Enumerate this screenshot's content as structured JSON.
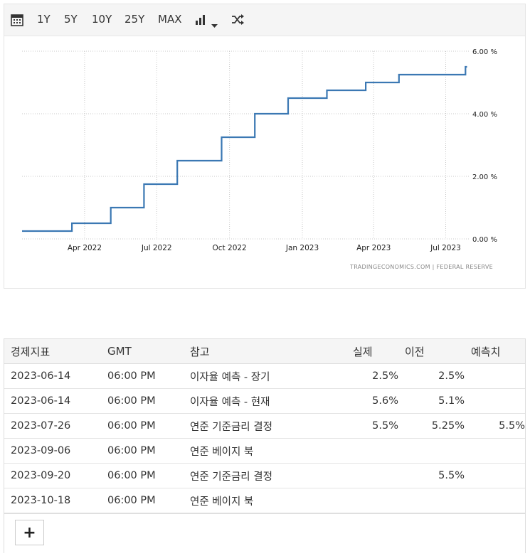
{
  "toolbar": {
    "ranges": [
      "1Y",
      "5Y",
      "10Y",
      "25Y",
      "MAX"
    ],
    "icons": [
      "calendar-icon",
      "bar-chart-icon",
      "dropdown-caret-icon",
      "shuffle-icon"
    ]
  },
  "chart_data": {
    "type": "line",
    "step": true,
    "title": "",
    "xlabel": "",
    "ylabel": "",
    "x_ticks": [
      "Apr 2022",
      "Jul 2022",
      "Oct 2022",
      "Jan 2023",
      "Apr 2023",
      "Jul 2023"
    ],
    "y_ticks": [
      "0.00 %",
      "2.00 %",
      "4.00 %",
      "6.00 %"
    ],
    "ylim": [
      0,
      6
    ],
    "xlim": [
      "2022-01-12",
      "2023-08-01"
    ],
    "grid": true,
    "line_color": "#3b78b3",
    "series": [
      {
        "x": [
          "2022-01-12",
          "2022-03-16",
          "2022-05-04",
          "2022-06-15",
          "2022-07-27",
          "2022-09-21",
          "2022-11-02",
          "2022-12-14",
          "2023-02-01",
          "2023-03-22",
          "2023-05-03",
          "2023-07-26",
          "2023-07-28"
        ],
        "values": [
          0.25,
          0.5,
          1.0,
          1.75,
          2.5,
          3.25,
          4.0,
          4.5,
          4.75,
          5.0,
          5.25,
          5.5,
          5.5
        ]
      }
    ],
    "source": "TRADINGECONOMICS.COM  |  FEDERAL RESERVE"
  },
  "calendar": {
    "headers": [
      "경제지표",
      "GMT",
      "참고",
      "실제",
      "이전",
      "예측치"
    ],
    "rows": [
      {
        "date": "2023-06-14",
        "time": "06:00 PM",
        "event": "이자율 예측 - 장기",
        "actual": "2.5%",
        "previous": "2.5%",
        "forecast": ""
      },
      {
        "date": "2023-06-14",
        "time": "06:00 PM",
        "event": "이자율 예측 - 현재",
        "actual": "5.6%",
        "previous": "5.1%",
        "forecast": ""
      },
      {
        "date": "2023-07-26",
        "time": "06:00 PM",
        "event": "연준 기준금리 결정",
        "actual": "5.5%",
        "previous": "5.25%",
        "forecast": "5.5%"
      },
      {
        "date": "2023-09-06",
        "time": "06:00 PM",
        "event": "연준 베이지 북",
        "actual": "",
        "previous": "",
        "forecast": ""
      },
      {
        "date": "2023-09-20",
        "time": "06:00 PM",
        "event": "연준 기준금리 결정",
        "actual": "",
        "previous": "5.5%",
        "forecast": ""
      },
      {
        "date": "2023-10-18",
        "time": "06:00 PM",
        "event": "연준 베이지 북",
        "actual": "",
        "previous": "",
        "forecast": ""
      }
    ],
    "more_label": "+"
  }
}
